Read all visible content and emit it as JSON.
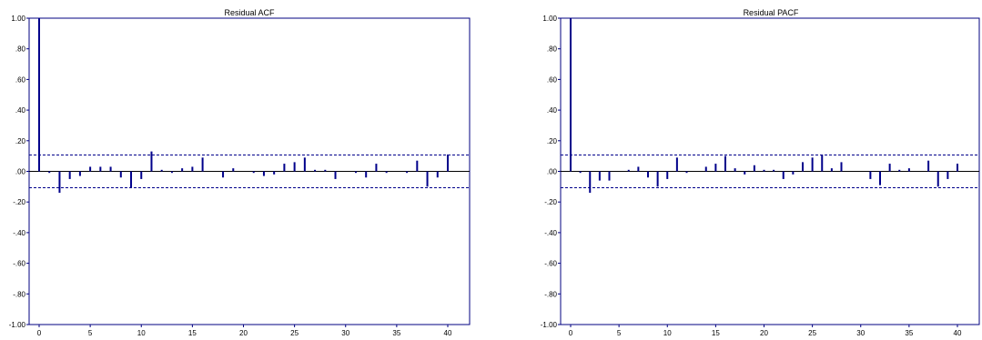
{
  "colors": {
    "bar": "#00008b",
    "bound": "#00008b",
    "axis": "#000080",
    "zero_line": "#000000"
  },
  "chart_data": [
    {
      "type": "bar",
      "title": "Residual ACF",
      "xlabel": "",
      "ylabel": "",
      "xlim": [
        0,
        40
      ],
      "ylim": [
        -1.0,
        1.0
      ],
      "y_ticks": [
        1.0,
        0.8,
        0.6,
        0.4,
        0.2,
        0.0,
        -0.2,
        -0.4,
        -0.6,
        -0.8,
        -1.0
      ],
      "y_tick_labels": [
        "1.00",
        ".80",
        ".60",
        ".40",
        ".20",
        ".00",
        "-.20",
        "-.40",
        "-.60",
        "-.80",
        "-1.00"
      ],
      "x_ticks": [
        0,
        5,
        10,
        15,
        20,
        25,
        30,
        35,
        40
      ],
      "x_tick_labels": [
        "0",
        "5",
        "10",
        "15",
        "20",
        "25",
        "30",
        "35",
        "40"
      ],
      "confidence_bound": 0.107,
      "grid": false,
      "lags": [
        0,
        1,
        2,
        3,
        4,
        5,
        6,
        7,
        8,
        9,
        10,
        11,
        12,
        13,
        14,
        15,
        16,
        17,
        18,
        19,
        20,
        21,
        22,
        23,
        24,
        25,
        26,
        27,
        28,
        29,
        30,
        31,
        32,
        33,
        34,
        35,
        36,
        37,
        38,
        39,
        40
      ],
      "values": [
        1.0,
        -0.01,
        -0.14,
        -0.05,
        -0.03,
        0.03,
        0.03,
        0.03,
        -0.04,
        -0.11,
        -0.05,
        0.13,
        0.01,
        -0.01,
        0.02,
        0.03,
        0.09,
        0.0,
        -0.04,
        0.02,
        0.0,
        -0.01,
        -0.03,
        -0.02,
        0.05,
        0.06,
        0.09,
        0.01,
        0.01,
        -0.05,
        0.0,
        -0.01,
        -0.04,
        0.05,
        -0.01,
        0.0,
        -0.01,
        0.07,
        -0.1,
        -0.04,
        0.11
      ]
    },
    {
      "type": "bar",
      "title": "Residual PACF",
      "xlabel": "",
      "ylabel": "",
      "xlim": [
        0,
        40
      ],
      "ylim": [
        -1.0,
        1.0
      ],
      "y_ticks": [
        1.0,
        0.8,
        0.6,
        0.4,
        0.2,
        0.0,
        -0.2,
        -0.4,
        -0.6,
        -0.8,
        -1.0
      ],
      "y_tick_labels": [
        "1.00",
        ".80",
        ".60",
        ".40",
        ".20",
        ".00",
        "-.20",
        "-.40",
        "-.60",
        "-.80",
        "-1.00"
      ],
      "x_ticks": [
        0,
        5,
        10,
        15,
        20,
        25,
        30,
        35,
        40
      ],
      "x_tick_labels": [
        "0",
        "5",
        "10",
        "15",
        "20",
        "25",
        "30",
        "35",
        "40"
      ],
      "confidence_bound": 0.107,
      "grid": false,
      "lags": [
        0,
        1,
        2,
        3,
        4,
        5,
        6,
        7,
        8,
        9,
        10,
        11,
        12,
        13,
        14,
        15,
        16,
        17,
        18,
        19,
        20,
        21,
        22,
        23,
        24,
        25,
        26,
        27,
        28,
        29,
        30,
        31,
        32,
        33,
        34,
        35,
        36,
        37,
        38,
        39,
        40
      ],
      "values": [
        1.0,
        -0.01,
        -0.14,
        -0.06,
        -0.06,
        0.0,
        0.01,
        0.03,
        -0.04,
        -0.1,
        -0.05,
        0.09,
        -0.01,
        0.0,
        0.03,
        0.05,
        0.1,
        0.02,
        -0.02,
        0.04,
        0.01,
        0.01,
        -0.05,
        -0.02,
        0.06,
        0.09,
        0.11,
        0.02,
        0.06,
        0.0,
        0.0,
        -0.05,
        -0.09,
        0.05,
        0.01,
        0.02,
        0.0,
        0.07,
        -0.1,
        -0.05,
        0.05
      ]
    }
  ]
}
